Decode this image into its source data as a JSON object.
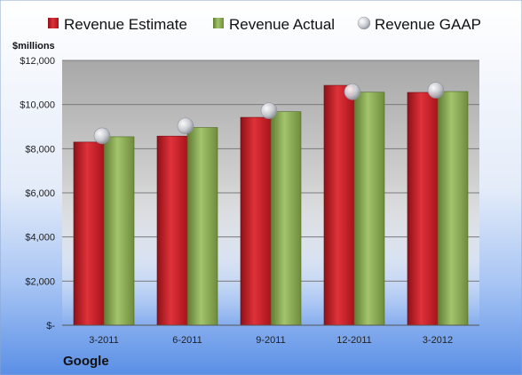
{
  "footer_label": "Google",
  "colors": {
    "estimate": "#c8202a",
    "actual": "#8fb05a",
    "gaap": "#c8ccd4"
  },
  "chart_data": {
    "type": "bar",
    "title": "",
    "xlabel": "",
    "ylabel": "$millions",
    "categories": [
      "3-2011",
      "6-2011",
      "9-2011",
      "12-2011",
      "3-2012"
    ],
    "series": [
      {
        "name": "Revenue Estimate",
        "kind": "bar",
        "values": [
          8300,
          8570,
          9420,
          10870,
          10550
        ]
      },
      {
        "name": "Revenue Actual",
        "kind": "bar",
        "values": [
          8540,
          8960,
          9680,
          10560,
          10590
        ]
      },
      {
        "name": "Revenue GAAP",
        "kind": "marker",
        "values": [
          8580,
          9030,
          9720,
          10580,
          10650
        ]
      }
    ],
    "ylim": [
      0,
      12000
    ],
    "yticks": [
      0,
      2000,
      4000,
      6000,
      8000,
      10000,
      12000
    ],
    "ytick_labels": [
      "$-",
      "$2,000",
      "$4,000",
      "$6,000",
      "$8,000",
      "$10,000",
      "$12,000"
    ],
    "grid": true,
    "legend_position": "top"
  }
}
